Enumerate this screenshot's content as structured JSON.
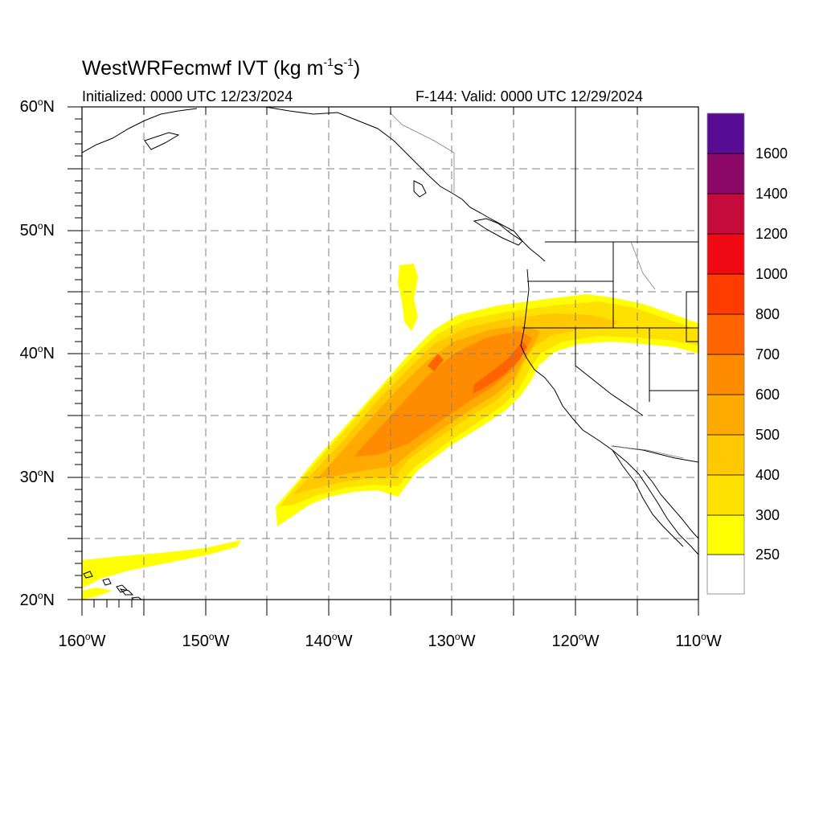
{
  "title": {
    "prefix": "WestWRFecmwf IVT (kg m",
    "exp1": "-1",
    "mid": "s",
    "exp2": "-1",
    "suffix": ")"
  },
  "init_text": "Initialized: 0000 UTC 12/23/2024",
  "valid_text": "F-144: Valid: 0000 UTC 12/29/2024",
  "lat_labels": [
    {
      "num": "60",
      "unit": "N"
    },
    {
      "num": "50",
      "unit": "N"
    },
    {
      "num": "40",
      "unit": "N"
    },
    {
      "num": "30",
      "unit": "N"
    },
    {
      "num": "20",
      "unit": "N"
    }
  ],
  "lon_labels": [
    {
      "num": "160",
      "unit": "W"
    },
    {
      "num": "150",
      "unit": "W"
    },
    {
      "num": "140",
      "unit": "W"
    },
    {
      "num": "130",
      "unit": "W"
    },
    {
      "num": "120",
      "unit": "W"
    },
    {
      "num": "110",
      "unit": "W"
    }
  ],
  "deg_symbol": "o",
  "colorbar": {
    "labels": [
      "1600",
      "1400",
      "1200",
      "1000",
      "800",
      "700",
      "600",
      "500",
      "400",
      "300",
      "250"
    ],
    "colors": [
      "#580c94",
      "#8b0868",
      "#c50a3c",
      "#f00a13",
      "#ff3c00",
      "#ff6400",
      "#ff8c00",
      "#ffaa00",
      "#ffc800",
      "#ffe100",
      "#ffff00",
      "#ffffff"
    ]
  },
  "map_colors": {
    "ivt_250": "#ffff00",
    "ivt_300": "#ffe100",
    "ivt_400": "#ffc800",
    "ivt_500": "#ffaa00",
    "ivt_600": "#ff8c00",
    "ivt_700": "#ff6400",
    "coastline": "#000000",
    "grid": "#808080"
  }
}
